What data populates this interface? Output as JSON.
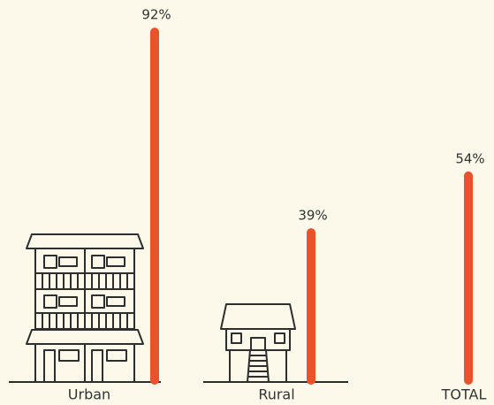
{
  "chart_data": {
    "type": "bar",
    "categories": [
      "Urban",
      "Rural",
      "TOTAL"
    ],
    "values": [
      92,
      39,
      54
    ],
    "value_labels": [
      "92%",
      "39%",
      "54%"
    ],
    "color": "#e8532b"
  }
}
